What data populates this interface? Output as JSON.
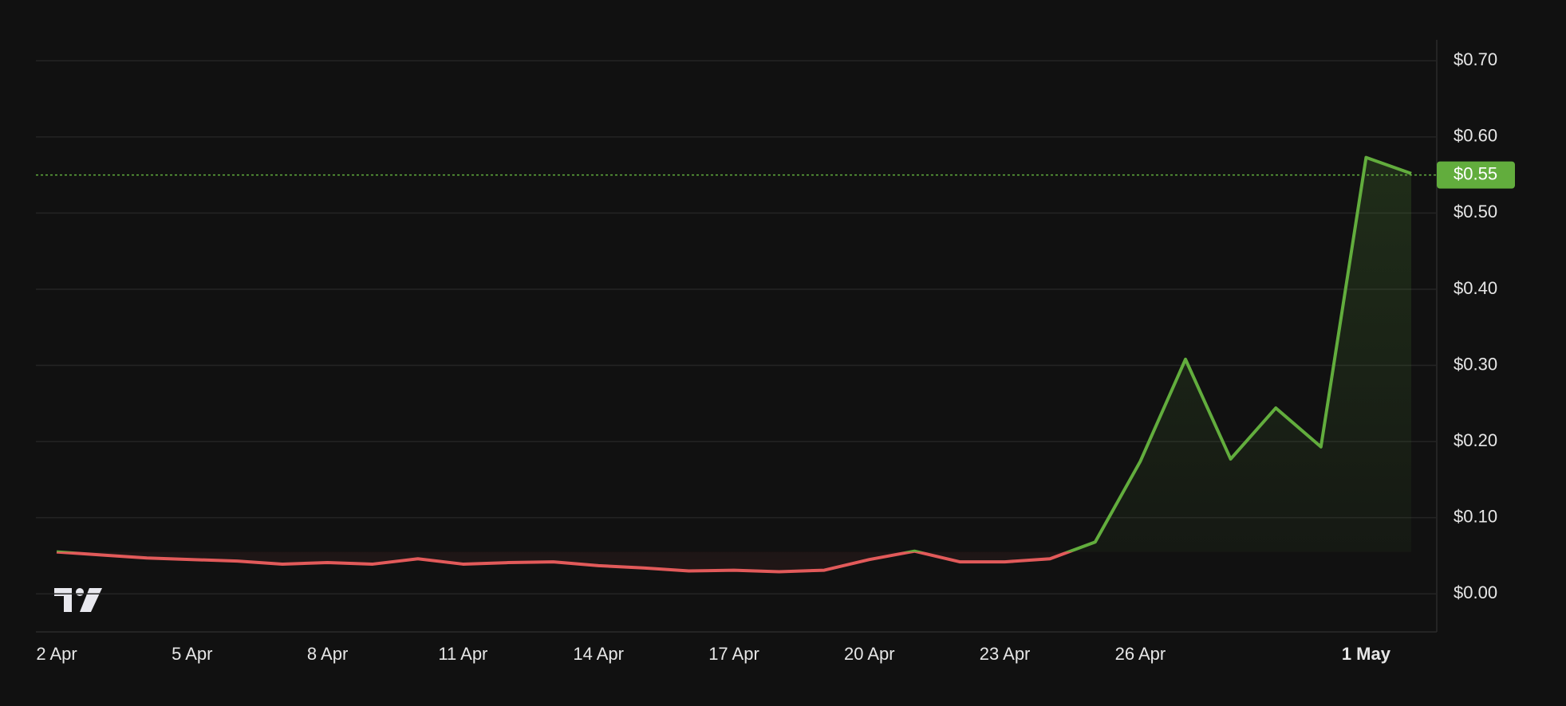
{
  "chart_data": {
    "type": "line",
    "categories": [
      "2 Apr",
      null,
      null,
      "5 Apr",
      null,
      null,
      "8 Apr",
      null,
      null,
      "11 Apr",
      null,
      null,
      "14 Apr",
      null,
      null,
      "17 Apr",
      null,
      null,
      "20 Apr",
      null,
      null,
      "23 Apr",
      null,
      null,
      "26 Apr",
      null,
      null,
      null,
      null,
      "1 May",
      null
    ],
    "series": [
      {
        "values": [
          0.055,
          0.051,
          0.047,
          0.045,
          0.043,
          0.039,
          0.041,
          0.039,
          0.046,
          0.039,
          0.041,
          0.042,
          0.037,
          0.034,
          0.03,
          0.031,
          0.029,
          0.031,
          0.045,
          0.056,
          0.042,
          0.042,
          0.046,
          0.068,
          0.174,
          0.308,
          0.177,
          0.244,
          0.193,
          0.573,
          0.552
        ],
        "up_color": "#62ad3d",
        "down_color": "#e25a5a"
      }
    ],
    "current_price": {
      "value": 0.55,
      "label": "$0.55"
    },
    "ylim": [
      -0.05,
      0.7275
    ],
    "yticks": [
      {
        "value": 0,
        "label": "$0.00"
      },
      {
        "value": 0.1,
        "label": "$0.10"
      },
      {
        "value": 0.2,
        "label": "$0.20"
      },
      {
        "value": 0.3,
        "label": "$0.30"
      },
      {
        "value": 0.4,
        "label": "$0.40"
      },
      {
        "value": 0.5,
        "label": "$0.50"
      },
      {
        "value": 0.6,
        "label": "$0.60"
      },
      {
        "value": 0.7,
        "label": "$0.70"
      }
    ],
    "grid": true
  }
}
